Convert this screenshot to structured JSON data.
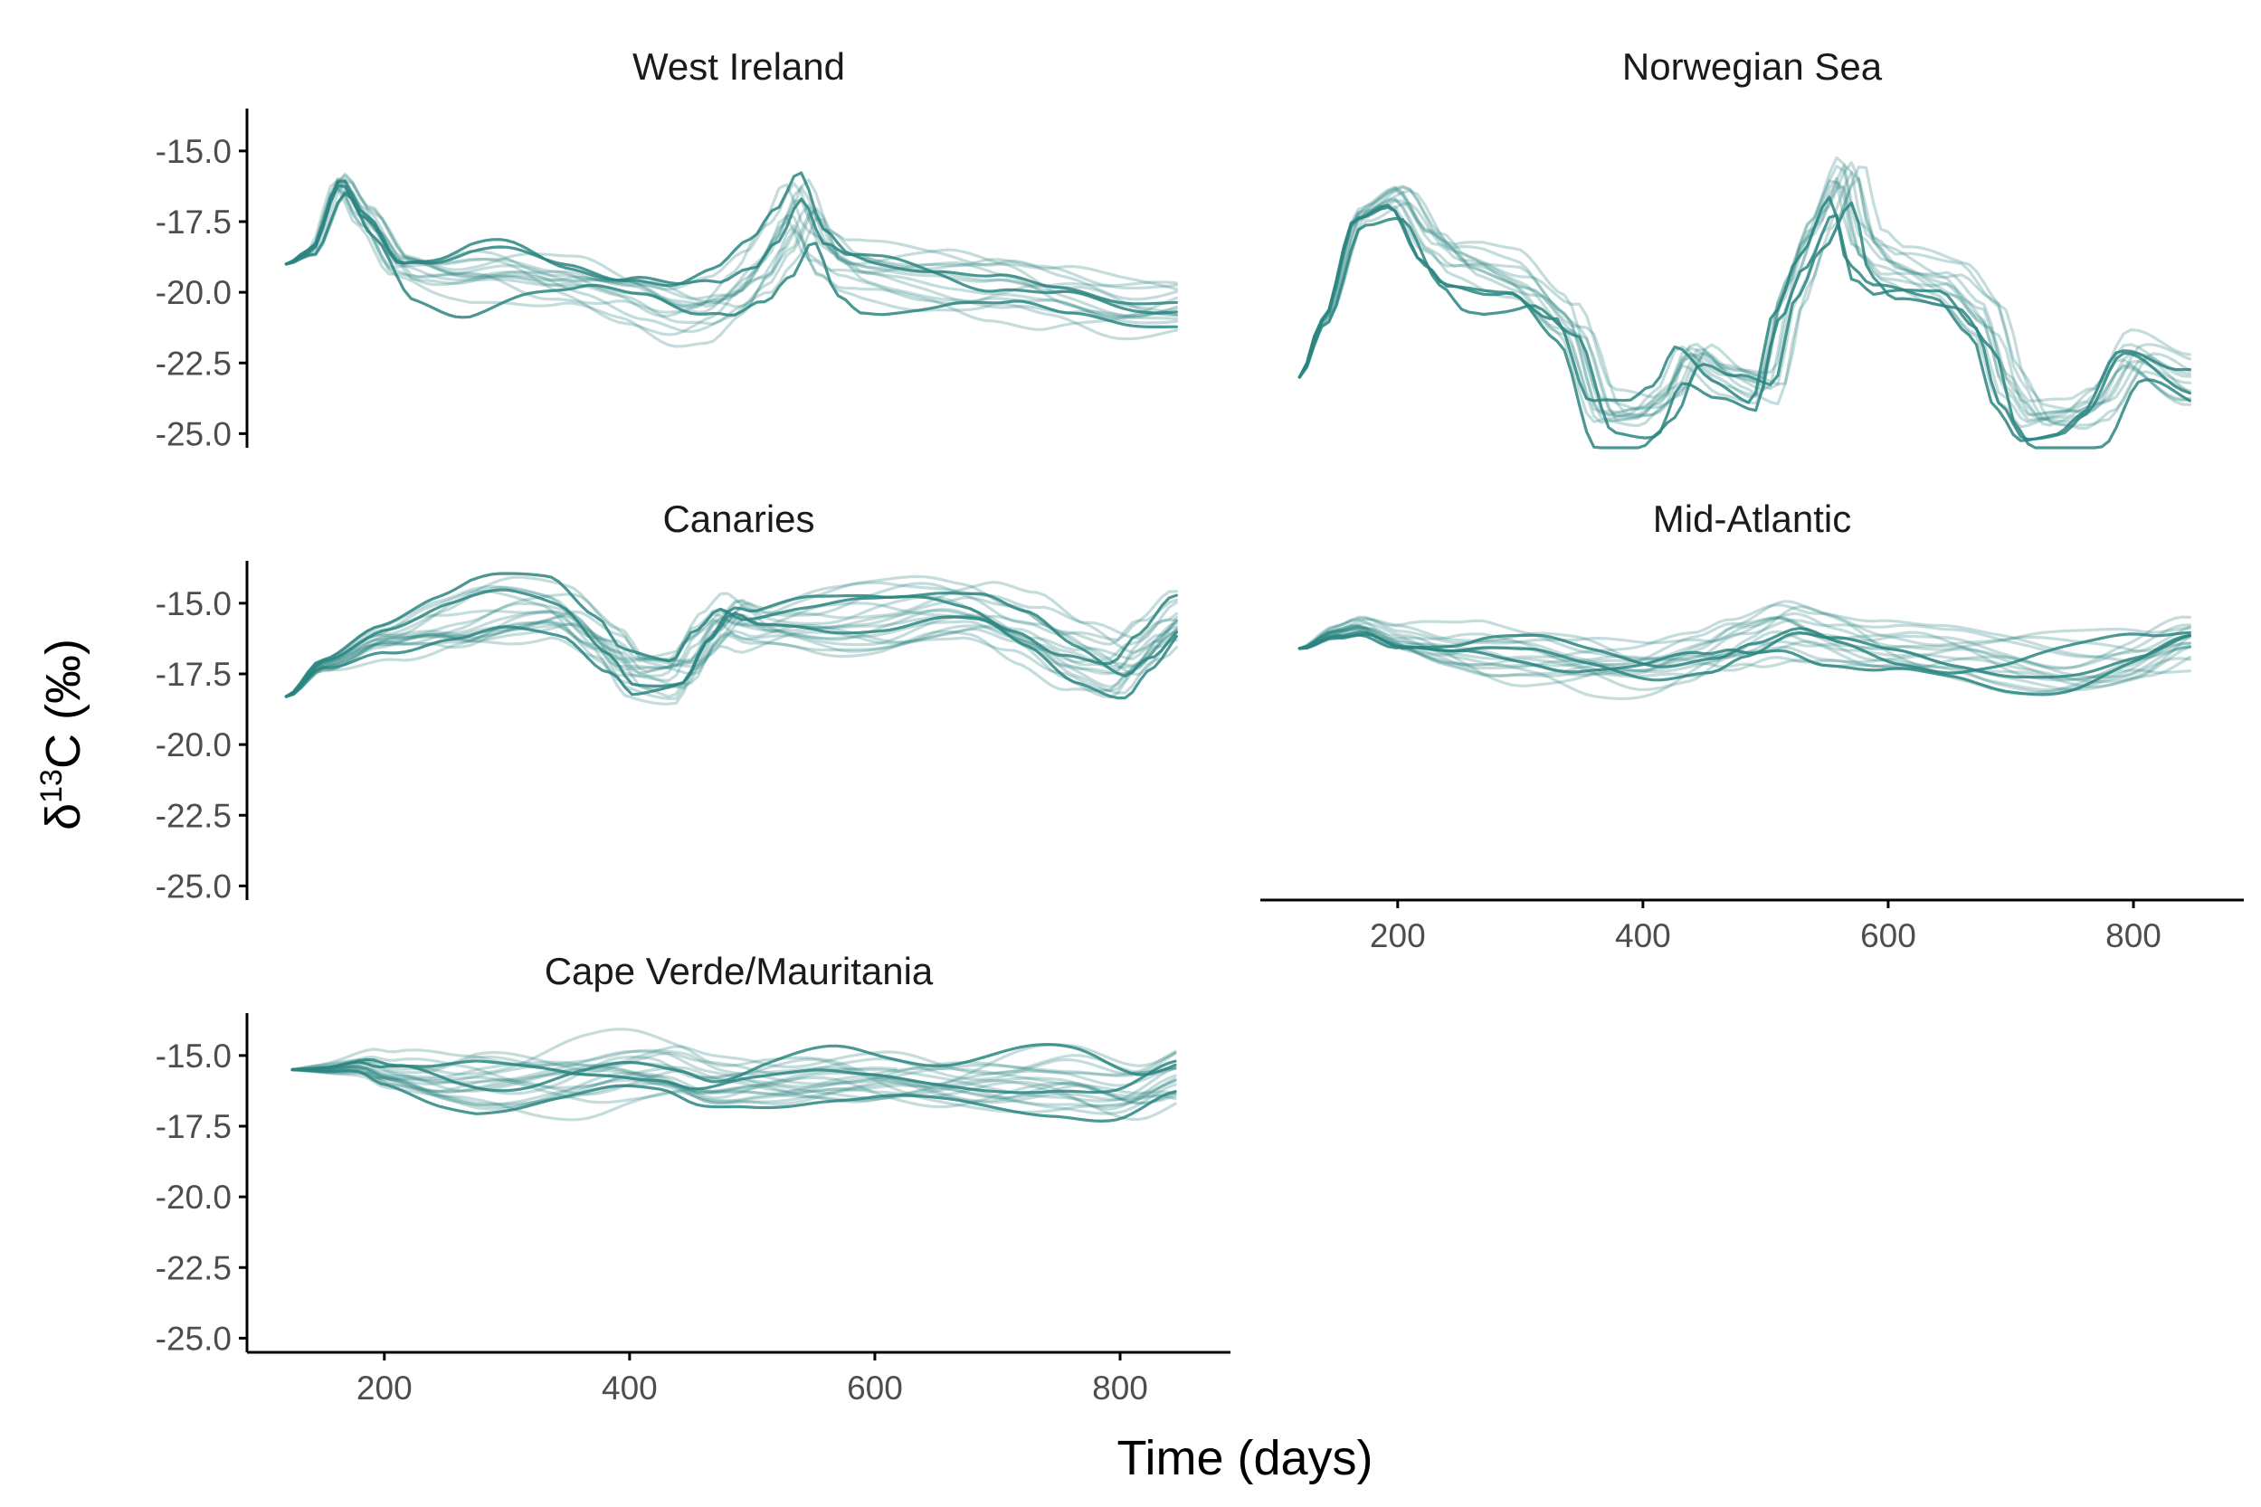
{
  "chart_data": {
    "type": "line",
    "xlabel": "Time (days)",
    "ylabel": {
      "prefix": "δ",
      "sup": "13",
      "suffix": "C (‰)"
    },
    "xlim": [
      88,
      890
    ],
    "ylim": [
      -25.5,
      -13.5
    ],
    "x_ticks": [
      200,
      400,
      600,
      800
    ],
    "y_ticks": [
      -15.0,
      -17.5,
      -20.0,
      -22.5,
      -25.0
    ],
    "y_tick_labels": [
      "-15.0",
      "-17.5",
      "-20.0",
      "-22.5",
      "-25.0"
    ],
    "x_tick_labels": [
      "200",
      "400",
      "600",
      "800"
    ],
    "line_color": "#2a8580",
    "grid": false,
    "panels": [
      {
        "title": "West Ireland",
        "x": [
          120,
          140,
          165,
          185,
          215,
          250,
          300,
          350,
          400,
          440,
          470,
          500,
          520,
          540,
          560,
          580,
          600,
          650,
          700,
          750,
          800,
          850
        ],
        "series_mean": [
          -19.0,
          -18.6,
          -16.2,
          -17.5,
          -19.3,
          -19.6,
          -19.3,
          -19.7,
          -20.3,
          -20.8,
          -20.5,
          -19.6,
          -18.5,
          -17.0,
          -18.8,
          -19.4,
          -19.5,
          -19.6,
          -20.0,
          -20.6,
          -20.9,
          -20.7
        ],
        "n_series": 16,
        "x_range": [
          120,
          850
        ]
      },
      {
        "title": "Norwegian Sea",
        "x": [
          120,
          140,
          170,
          200,
          230,
          250,
          300,
          340,
          370,
          400,
          420,
          440,
          470,
          500,
          520,
          540,
          565,
          580,
          600,
          650,
          680,
          700,
          720,
          750,
          770,
          800,
          850
        ],
        "series_mean": [
          -23.0,
          -21.0,
          -17.3,
          -16.7,
          -18.5,
          -19.2,
          -19.6,
          -21.0,
          -24.3,
          -24.4,
          -23.8,
          -22.2,
          -23.0,
          -23.4,
          -20.0,
          -18.0,
          -16.0,
          -18.5,
          -19.3,
          -19.8,
          -21.0,
          -23.5,
          -24.6,
          -24.5,
          -24.0,
          -22.2,
          -23.3
        ],
        "n_series": 14,
        "x_range": [
          120,
          850
        ]
      },
      {
        "title": "Canaries",
        "x": [
          120,
          150,
          200,
          250,
          300,
          340,
          380,
          400,
          440,
          460,
          480,
          500,
          550,
          600,
          650,
          680,
          720,
          760,
          800,
          820,
          850
        ],
        "series_mean": [
          -18.3,
          -17.2,
          -16.3,
          -15.8,
          -15.4,
          -15.4,
          -16.5,
          -17.4,
          -17.5,
          -16.3,
          -15.5,
          -15.9,
          -15.7,
          -15.5,
          -15.3,
          -15.4,
          -16.0,
          -16.8,
          -17.3,
          -16.5,
          -15.4
        ],
        "n_series": 20,
        "x_range": [
          120,
          850
        ]
      },
      {
        "title": "Mid-Atlantic",
        "x": [
          120,
          150,
          170,
          200,
          250,
          300,
          350,
          400,
          450,
          480,
          520,
          550,
          600,
          650,
          700,
          750,
          800,
          850
        ],
        "series_mean": [
          -16.6,
          -16.0,
          -15.8,
          -16.3,
          -16.7,
          -16.9,
          -17.2,
          -17.4,
          -17.0,
          -16.5,
          -15.9,
          -16.2,
          -16.6,
          -16.9,
          -17.1,
          -17.2,
          -17.0,
          -16.4
        ],
        "n_series": 18,
        "x_range": [
          120,
          850
        ]
      },
      {
        "title": "Cape Verde/Mauritania",
        "x": [
          125,
          150,
          180,
          200,
          250,
          300,
          350,
          400,
          430,
          460,
          500,
          550,
          600,
          650,
          700,
          750,
          800,
          850
        ],
        "series_mean": [
          -15.5,
          -15.5,
          -15.4,
          -15.7,
          -16.0,
          -16.0,
          -15.9,
          -15.7,
          -15.7,
          -16.0,
          -15.8,
          -15.8,
          -16.0,
          -16.1,
          -16.1,
          -16.1,
          -16.4,
          -15.8
        ],
        "n_series": 22,
        "x_range": [
          125,
          850
        ]
      }
    ]
  }
}
